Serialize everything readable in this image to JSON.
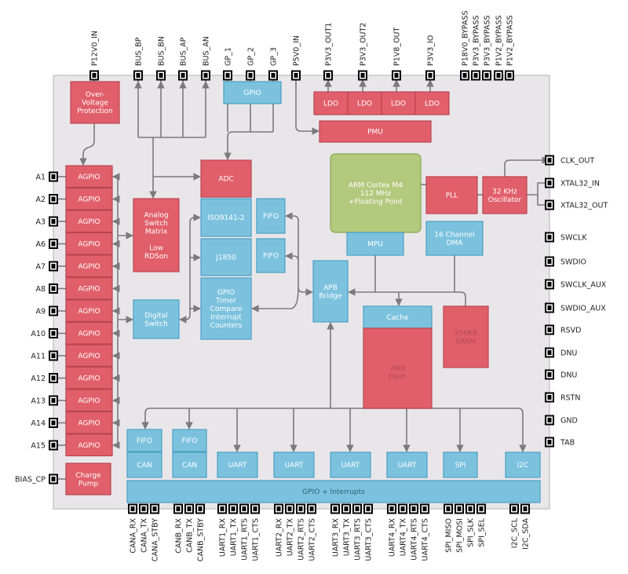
{
  "colors": {
    "chip_fill": "#e9e6ea",
    "chip_stroke": "#c9c6ca",
    "red_block": "#e15f6b",
    "red_stroke": "#b84552",
    "blue_block": "#7cc2de",
    "blue_stroke": "#4b9fc2",
    "green_block": "#b3c97e",
    "green_stroke": "#86a851",
    "wire": "#7a7a7a",
    "dim_text": "#b04a55"
  },
  "pins": {
    "top": [
      "P12V0_IN",
      "BUS_BP",
      "BUS_BN",
      "BUS_AP",
      "BUS_AN",
      "GP_1",
      "GP_2",
      "GP_3",
      "P5V0_IN",
      "P3V3_OUT1",
      "P3V3_OUT2",
      "P1V8_OUT",
      "P3V3_IO",
      "P18V0_BYPASS",
      "P3V3_BYPASS",
      "P3V3_BYPASS",
      "P1V2_BYPASS",
      "P1V2_BYPASS"
    ],
    "left": [
      "A1",
      "A2",
      "A3",
      "A6",
      "A7",
      "A8",
      "A9",
      "A10",
      "A11",
      "A12",
      "A13",
      "A14",
      "A15",
      "BIAS_CP"
    ],
    "right": [
      "CLK_OUT",
      "XTAL32_IN",
      "XTAL32_OUT",
      "SWCLK",
      "SWDIO",
      "SWCLK_AUX",
      "SWDIO_AUX",
      "RSVD",
      "DNU",
      "DNU",
      "RSTN",
      "GND",
      "TAB"
    ],
    "bottom": [
      "CANA_RX",
      "CANA_TX",
      "CANA_STBY",
      "CANB_RX",
      "CANB_TX",
      "CANB_STBY",
      "UART1_RX",
      "UART1_TX",
      "UART1_RTS",
      "UART1_CTS",
      "UART2_RX",
      "UART2_TX",
      "UART2_RTS",
      "UART2_CTS",
      "UART3_RX",
      "UART3_TX",
      "UART3_RTS",
      "UART3_CTS",
      "UART4_RX",
      "UART4_TX",
      "UART4_RTS",
      "UART4_CTS",
      "SPI_MISO",
      "SPI_MOSI",
      "SPI_SLK",
      "SPI_SEL",
      "I2C_SCL",
      "I2C_SDA"
    ]
  },
  "blocks": [
    {
      "id": "ovp",
      "color": "red",
      "lines": [
        "Over-",
        "Voltage",
        "Protection"
      ]
    },
    {
      "id": "gpio_top",
      "color": "blue",
      "lines": [
        "GPIO"
      ]
    },
    {
      "id": "ldo1",
      "color": "red",
      "lines": [
        "LDO"
      ]
    },
    {
      "id": "ldo2",
      "color": "red",
      "lines": [
        "LDO"
      ]
    },
    {
      "id": "ldo3",
      "color": "red",
      "lines": [
        "LDO"
      ]
    },
    {
      "id": "ldo4",
      "color": "red",
      "lines": [
        "LDO"
      ]
    },
    {
      "id": "pmu",
      "color": "red",
      "lines": [
        "PMU"
      ]
    },
    {
      "id": "agpio1",
      "color": "red",
      "lines": [
        "AGPIO"
      ]
    },
    {
      "id": "agpio2",
      "color": "red",
      "lines": [
        "AGPIO"
      ]
    },
    {
      "id": "agpio3",
      "color": "red",
      "lines": [
        "AGPIO"
      ]
    },
    {
      "id": "agpio4",
      "color": "red",
      "lines": [
        "AGPIO"
      ]
    },
    {
      "id": "agpio5",
      "color": "red",
      "lines": [
        "AGPIO"
      ]
    },
    {
      "id": "agpio6",
      "color": "red",
      "lines": [
        "AGPIO"
      ]
    },
    {
      "id": "agpio7",
      "color": "red",
      "lines": [
        "AGPIO"
      ]
    },
    {
      "id": "agpio8",
      "color": "red",
      "lines": [
        "AGPIO"
      ]
    },
    {
      "id": "agpio9",
      "color": "red",
      "lines": [
        "AGPIO"
      ]
    },
    {
      "id": "agpio10",
      "color": "red",
      "lines": [
        "AGPIO"
      ]
    },
    {
      "id": "agpio11",
      "color": "red",
      "lines": [
        "AGPIO"
      ]
    },
    {
      "id": "agpio12",
      "color": "red",
      "lines": [
        "AGPIO"
      ]
    },
    {
      "id": "agpio13",
      "color": "red",
      "lines": [
        "AGPIO"
      ]
    },
    {
      "id": "charge_pump",
      "color": "red",
      "lines": [
        "Charge",
        "Pump"
      ]
    },
    {
      "id": "analog_switch",
      "color": "red",
      "lines": [
        "Analog",
        "Switch",
        "Matrix",
        "",
        "Low",
        "RDSon"
      ]
    },
    {
      "id": "digital_switch",
      "color": "blue",
      "lines": [
        "Digital",
        "Switch"
      ]
    },
    {
      "id": "adc",
      "color": "red",
      "lines": [
        "ADC"
      ]
    },
    {
      "id": "iso9141",
      "color": "blue",
      "lines": [
        "ISO9141-2"
      ]
    },
    {
      "id": "j1850",
      "color": "blue",
      "lines": [
        "J1850"
      ]
    },
    {
      "id": "gpio_timer",
      "color": "blue",
      "lines": [
        "GPIO",
        "Timer",
        "Compare",
        "Interrupt",
        "Counters"
      ]
    },
    {
      "id": "fifo_a",
      "color": "blue",
      "lines": [
        "FIFO"
      ]
    },
    {
      "id": "fifo_b",
      "color": "blue",
      "lines": [
        "FIFO"
      ]
    },
    {
      "id": "apb",
      "color": "blue",
      "lines": [
        "APB",
        "Bridge"
      ]
    },
    {
      "id": "arm",
      "color": "green",
      "lines": [
        "ARM Cortex M4",
        "112 MHz",
        "+Floating Point"
      ]
    },
    {
      "id": "mpu",
      "color": "blue",
      "lines": [
        "MPU"
      ]
    },
    {
      "id": "dma",
      "color": "blue",
      "lines": [
        "16 Channel",
        "DMA"
      ]
    },
    {
      "id": "pll",
      "color": "red",
      "lines": [
        "PLL"
      ]
    },
    {
      "id": "osc",
      "color": "red",
      "lines": [
        "32 KHz",
        "Oscillator"
      ]
    },
    {
      "id": "cache",
      "color": "blue",
      "lines": [
        "Cache"
      ]
    },
    {
      "id": "flash",
      "color": "red",
      "dim": true,
      "lines": [
        "2MB",
        "Flash"
      ]
    },
    {
      "id": "sram",
      "color": "red",
      "dim": true,
      "lines": [
        "256KB",
        "SRAM"
      ]
    },
    {
      "id": "fifo_cana",
      "color": "blue",
      "lines": [
        "FIFO"
      ]
    },
    {
      "id": "can_a",
      "color": "blue",
      "lines": [
        "CAN"
      ]
    },
    {
      "id": "fifo_canb",
      "color": "blue",
      "lines": [
        "FIFO"
      ]
    },
    {
      "id": "can_b",
      "color": "blue",
      "lines": [
        "CAN"
      ]
    },
    {
      "id": "uart1",
      "color": "blue",
      "lines": [
        "UART"
      ]
    },
    {
      "id": "uart2",
      "color": "blue",
      "lines": [
        "UART"
      ]
    },
    {
      "id": "uart3",
      "color": "blue",
      "lines": [
        "UART"
      ]
    },
    {
      "id": "uart4",
      "color": "blue",
      "lines": [
        "UART"
      ]
    },
    {
      "id": "spi",
      "color": "blue",
      "lines": [
        "SPI"
      ]
    },
    {
      "id": "i2c",
      "color": "blue",
      "lines": [
        "I2C"
      ]
    },
    {
      "id": "gpio_interrupts",
      "color": "blue",
      "dark_text": true,
      "lines": [
        "GPIO + Interrupts"
      ]
    }
  ]
}
